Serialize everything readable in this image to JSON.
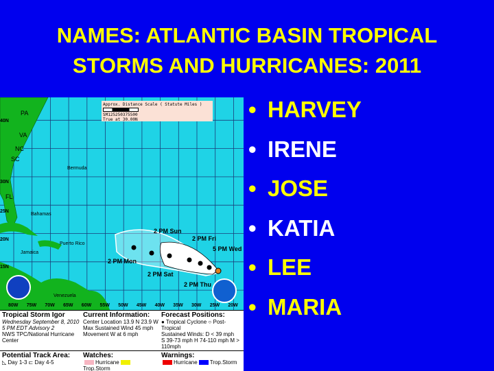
{
  "title": {
    "line1": "NAMES: ATLANTIC BASIN TROPICAL",
    "line2": "STORMS AND HURRICANES: 2011"
  },
  "names": [
    {
      "label": "HARVEY",
      "color": "#ffff00"
    },
    {
      "label": "IRENE",
      "color": "#ffffff"
    },
    {
      "label": "JOSE",
      "color": "#ffff00"
    },
    {
      "label": "KATIA",
      "color": "#ffffff"
    },
    {
      "label": "LEE",
      "color": "#ffff00"
    },
    {
      "label": "MARIA",
      "color": "#ffff00"
    }
  ],
  "bullet": "•",
  "map": {
    "scale": {
      "title": "Approx. Distance Scale ( Statute Miles )",
      "ticks": "SM125250375500",
      "note": "True at 30.00N"
    },
    "places": [
      "PA",
      "VA",
      "NC",
      "SC",
      "FL",
      "Bermuda",
      "Bahamas",
      "Puerto Rico",
      "Jamaica",
      "Venezuela"
    ],
    "lat_labels": [
      "40N",
      "30N",
      "25N",
      "20N",
      "15N"
    ],
    "lon_labels": [
      "80W",
      "75W",
      "70W",
      "65W",
      "60W",
      "55W",
      "50W",
      "45W",
      "40W",
      "35W",
      "30W",
      "25W",
      "20W"
    ],
    "forecast_labels": [
      "2 PM Sun",
      "2 PM Fri",
      "5 PM Wed",
      "2 PM Mon",
      "2 PM Sat",
      "2 PM Thu"
    ],
    "colors": {
      "ocean": "#1fd3e6",
      "land": "#12b31e",
      "cone": "#ffffff"
    }
  },
  "legend": {
    "storm": {
      "name": "Tropical Storm Igor",
      "date": "Wednesday September 8, 2010",
      "advisory": "5 PM EDT Advisory 2",
      "center": "NWS TPC/National Hurricane Center"
    },
    "current": {
      "heading": "Current Information:",
      "location": "Center Location 13.9 N  23.9 W",
      "wind": "Max Sustained Wind  45 mph",
      "movement": "Movement W at  6 mph"
    },
    "forecast": {
      "heading": "Forecast Positions:",
      "types": "Tropical Cyclone  ○ Post-Tropical",
      "winds": "Sustained Winds:     D  < 39 mph",
      "categories": "S  39-73 mph  H  74-110 mph  M  > 110mph"
    },
    "track": {
      "heading": "Potential Track Area:",
      "day13": "Day 1-3",
      "day45": "Day 4-5"
    },
    "watches": {
      "heading": "Watches:",
      "hurricane": "Hurricane",
      "storm": "Trop.Storm",
      "colors": [
        "#f7b6c2",
        "#f0f000"
      ]
    },
    "warnings": {
      "heading": "Warnings:",
      "hurricane": "Hurricane",
      "storm": "Trop.Storm",
      "colors": [
        "#ee0000",
        "#0000ff"
      ]
    }
  }
}
